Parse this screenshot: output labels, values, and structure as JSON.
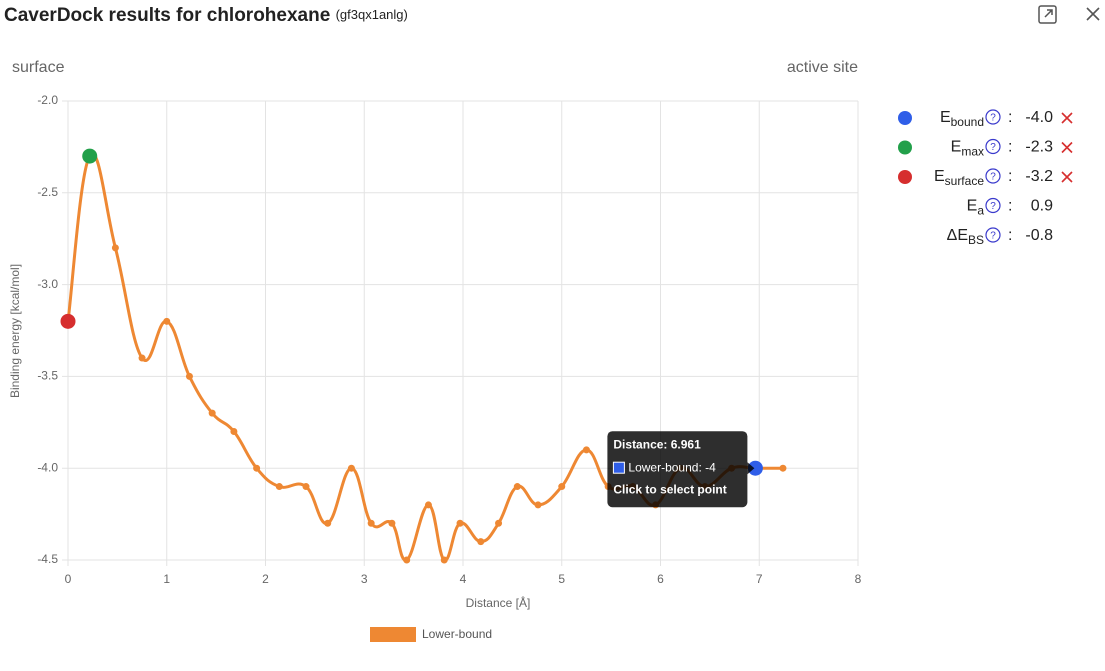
{
  "header": {
    "title": "CaverDock results for chlorohexane",
    "subtitle": "(gf3qx1anlg)"
  },
  "chart_data": {
    "type": "line",
    "left_label": "surface",
    "right_label": "active site",
    "xlabel": "Distance [Å]",
    "ylabel": "Binding energy [kcal/mol]",
    "xlim": [
      0,
      8
    ],
    "xticks": [
      0,
      1,
      2,
      3,
      4,
      5,
      6,
      7,
      8
    ],
    "ylim": [
      -4.5,
      -2.0
    ],
    "yticks": [
      {
        "value": -2.0,
        "label": "-2.0"
      },
      -2.5,
      {
        "value": -3.0,
        "label": "-3.0"
      },
      -3.5,
      {
        "value": -4.0,
        "label": "-4.0"
      },
      -4.5
    ],
    "grid": true,
    "series": [
      {
        "name": "Lower-bound",
        "color": "#ee8833",
        "x": [
          0,
          0.22,
          0.48,
          0.75,
          1.0,
          1.23,
          1.46,
          1.68,
          1.91,
          2.14,
          2.41,
          2.63,
          2.87,
          3.07,
          3.28,
          3.43,
          3.65,
          3.81,
          3.97,
          4.18,
          4.36,
          4.55,
          4.76,
          5.0,
          5.25,
          5.47,
          5.72,
          5.95,
          6.2,
          6.45,
          6.72,
          6.961,
          7.24
        ],
        "values": [
          -3.2,
          -2.3,
          -2.8,
          -3.4,
          -3.2,
          -3.5,
          -3.7,
          -3.8,
          -4.0,
          -4.1,
          -4.1,
          -4.3,
          -4.0,
          -4.3,
          -4.3,
          -4.5,
          -4.2,
          -4.5,
          -4.3,
          -4.4,
          -4.3,
          -4.1,
          -4.2,
          -4.1,
          -3.9,
          -4.1,
          -4.1,
          -4.2,
          -4.0,
          -4.1,
          -4.0,
          -4.0,
          -4.0
        ]
      }
    ],
    "highlights": [
      {
        "index": 0,
        "color": "#d62e2e"
      },
      {
        "index": 1,
        "color": "#22a04a"
      },
      {
        "index": 31,
        "color": "#2f5ee8"
      }
    ],
    "tooltip": {
      "index": 31,
      "title": "Distance: 6.961",
      "line": "Lower-bound: -4",
      "hint": "Click to select point"
    }
  },
  "energies": [
    {
      "symbol": "E",
      "sub": "bound",
      "value": "-4.0",
      "color": "#2f5ee8",
      "removable": true
    },
    {
      "symbol": "E",
      "sub": "max",
      "value": "-2.3",
      "color": "#22a04a",
      "removable": true
    },
    {
      "symbol": "E",
      "sub": "surface",
      "value": "-3.2",
      "color": "#d62e2e",
      "removable": true
    },
    {
      "symbol": "E",
      "sub": "a",
      "value": "0.9",
      "removable": false
    },
    {
      "symbol": "ΔE",
      "sub": "BS",
      "value": "-0.8",
      "removable": false
    }
  ]
}
